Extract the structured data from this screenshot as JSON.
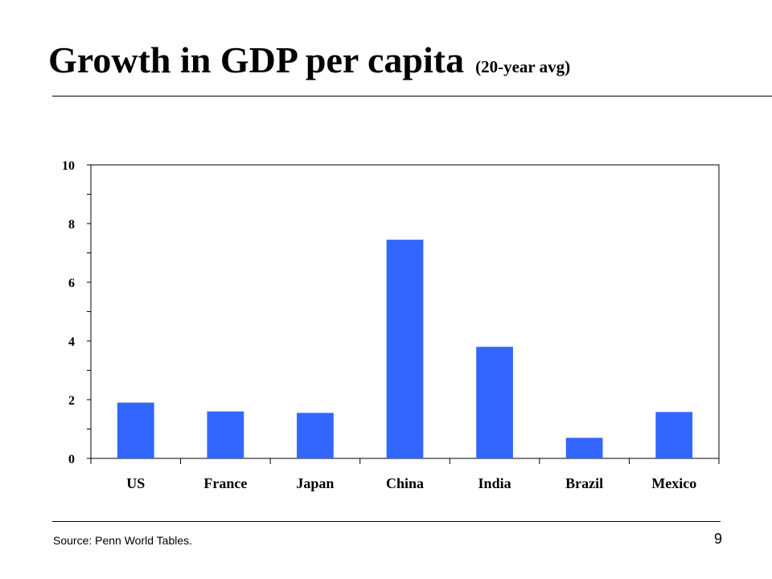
{
  "header": {
    "title": "Growth in GDP per capita",
    "subtitle": "(20-year avg)"
  },
  "chart_data": {
    "type": "bar",
    "categories": [
      "US",
      "France",
      "Japan",
      "China",
      "India",
      "Brazil",
      "Mexico"
    ],
    "values": [
      1.9,
      1.6,
      1.55,
      7.45,
      3.8,
      0.7,
      1.58
    ],
    "ylim": [
      0,
      10
    ],
    "yticks": [
      0,
      2,
      4,
      6,
      8,
      10
    ],
    "grid": false,
    "legend": "none",
    "bar_color": "#3366FF"
  },
  "footer": {
    "source": "Source:  Penn World Tables.",
    "page_number": "9"
  }
}
